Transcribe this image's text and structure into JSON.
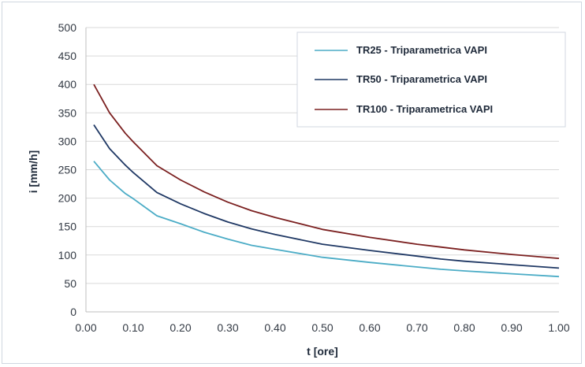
{
  "chart_data": {
    "type": "line",
    "xlabel": "t [ore]",
    "ylabel": "i [mm/h]",
    "xlim": [
      0,
      1
    ],
    "ylim": [
      0,
      500
    ],
    "x_ticks": [
      "0.00",
      "0.10",
      "0.20",
      "0.30",
      "0.40",
      "0.50",
      "0.60",
      "0.70",
      "0.80",
      "0.90",
      "1.00"
    ],
    "y_ticks": [
      "0",
      "50",
      "100",
      "150",
      "200",
      "250",
      "300",
      "350",
      "400",
      "450",
      "500"
    ],
    "grid": "horizontal",
    "legend_position": "top-right",
    "series": [
      {
        "name": "TR25 - Triparametrica VAPI",
        "color": "#4bacc6",
        "x": [
          0.0167,
          0.05,
          0.0833,
          0.1,
          0.15,
          0.2,
          0.25,
          0.3,
          0.35,
          0.4,
          0.5,
          0.6,
          0.7,
          0.75,
          0.8,
          0.9,
          1.0
        ],
        "y": [
          265,
          232,
          208,
          199,
          169,
          155,
          140,
          128,
          117,
          110,
          96,
          87,
          79,
          75,
          72,
          67,
          62
        ]
      },
      {
        "name": "TR50 - Triparametrica VAPI",
        "color": "#1f3864",
        "x": [
          0.0167,
          0.05,
          0.0833,
          0.1,
          0.15,
          0.2,
          0.25,
          0.3,
          0.35,
          0.4,
          0.5,
          0.6,
          0.7,
          0.75,
          0.8,
          0.9,
          1.0
        ],
        "y": [
          329,
          287,
          258,
          245,
          210,
          190,
          173,
          158,
          146,
          136,
          119,
          108,
          98,
          93,
          89,
          83,
          77
        ]
      },
      {
        "name": "TR100 - Triparametrica VAPI",
        "color": "#7b2020",
        "x": [
          0.0167,
          0.05,
          0.0833,
          0.1,
          0.15,
          0.2,
          0.25,
          0.3,
          0.35,
          0.4,
          0.5,
          0.6,
          0.7,
          0.75,
          0.8,
          0.9,
          1.0
        ],
        "y": [
          400,
          350,
          314,
          299,
          257,
          232,
          211,
          193,
          178,
          166,
          145,
          131,
          119,
          114,
          109,
          101,
          94
        ]
      }
    ]
  }
}
